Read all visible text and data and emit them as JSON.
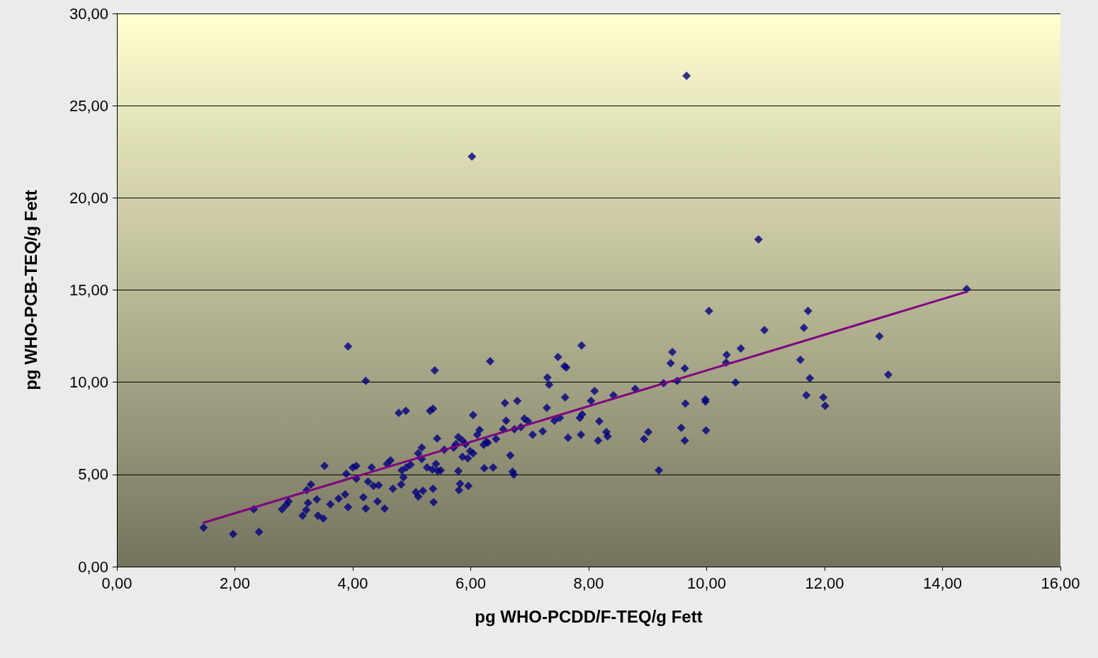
{
  "chart_data": {
    "type": "scatter",
    "xlabel": "pg WHO-PCDD/F-TEQ/g Fett",
    "ylabel": "pg WHO-PCB-TEQ/g Fett",
    "xlim": [
      0,
      16
    ],
    "ylim": [
      0,
      30
    ],
    "xticks": [
      {
        "value": 0,
        "label": "0,00"
      },
      {
        "value": 2,
        "label": "2,00"
      },
      {
        "value": 4,
        "label": "4,00"
      },
      {
        "value": 6,
        "label": "6,00"
      },
      {
        "value": 8,
        "label": "8,00"
      },
      {
        "value": 10,
        "label": "10,00"
      },
      {
        "value": 12,
        "label": "12,00"
      },
      {
        "value": 14,
        "label": "14,00"
      },
      {
        "value": 16,
        "label": "16,00"
      }
    ],
    "yticks": [
      {
        "value": 0,
        "label": "0,00"
      },
      {
        "value": 5,
        "label": "5,00"
      },
      {
        "value": 10,
        "label": "10,00"
      },
      {
        "value": 15,
        "label": "15,00"
      },
      {
        "value": 20,
        "label": "20,00"
      },
      {
        "value": 25,
        "label": "25,00"
      },
      {
        "value": 30,
        "label": "30,00"
      }
    ],
    "grid": "y",
    "series": [
      {
        "color": "#000080",
        "marker": "diamond",
        "x": [
          1.47,
          1.97,
          2.41,
          2.32,
          2.8,
          2.87,
          2.91,
          3.15,
          3.21,
          3.22,
          3.24,
          3.29,
          3.39,
          3.41,
          3.5,
          3.52,
          3.62,
          3.76,
          3.87,
          3.89,
          3.92,
          3.92,
          4.0,
          4.06,
          4.06,
          4.18,
          4.22,
          4.22,
          4.26,
          4.32,
          4.35,
          4.44,
          4.42,
          4.54,
          4.58,
          4.64,
          4.68,
          4.78,
          4.82,
          4.83,
          4.86,
          4.9,
          4.91,
          4.98,
          5.07,
          5.11,
          5.11,
          5.17,
          5.19,
          5.17,
          5.26,
          5.31,
          5.35,
          5.36,
          5.36,
          5.37,
          5.39,
          5.41,
          5.43,
          5.44,
          5.49,
          5.55,
          5.71,
          5.75,
          5.79,
          5.79,
          5.8,
          5.82,
          5.86,
          5.86,
          5.91,
          5.96,
          5.95,
          5.99,
          6.02,
          6.04,
          6.04,
          6.11,
          6.15,
          6.22,
          6.23,
          6.26,
          6.29,
          6.33,
          6.38,
          6.43,
          6.55,
          6.58,
          6.6,
          6.67,
          6.71,
          6.73,
          6.74,
          6.79,
          6.85,
          6.91,
          6.97,
          7.05,
          7.22,
          7.29,
          7.3,
          7.33,
          7.42,
          7.48,
          7.51,
          7.59,
          7.62,
          7.6,
          7.65,
          7.85,
          7.87,
          7.89,
          7.88,
          8.04,
          8.1,
          8.16,
          8.18,
          8.3,
          8.32,
          8.42,
          8.79,
          8.94,
          9.01,
          9.19,
          9.27,
          9.39,
          9.42,
          9.5,
          9.57,
          9.63,
          9.64,
          9.63,
          9.66,
          9.98,
          9.98,
          9.99,
          10.04,
          10.33,
          10.34,
          10.49,
          10.58,
          10.88,
          10.98,
          11.59,
          11.65,
          11.69,
          11.72,
          11.75,
          11.98,
          12.01,
          12.93,
          13.08,
          14.41
        ],
        "values": [
          2.11,
          1.77,
          1.88,
          3.11,
          3.11,
          3.34,
          3.53,
          2.77,
          3.07,
          4.15,
          3.46,
          4.46,
          3.65,
          2.77,
          2.61,
          5.46,
          3.38,
          3.69,
          3.92,
          5.03,
          3.23,
          11.95,
          5.38,
          5.46,
          4.76,
          3.76,
          10.07,
          3.15,
          4.61,
          5.38,
          4.38,
          4.42,
          3.53,
          3.15,
          5.57,
          5.76,
          4.23,
          8.34,
          4.46,
          5.22,
          4.84,
          8.45,
          5.38,
          5.53,
          4.03,
          3.8,
          6.15,
          6.45,
          4.11,
          5.84,
          5.38,
          8.45,
          5.26,
          8.57,
          4.23,
          3.5,
          10.64,
          5.57,
          6.95,
          5.19,
          5.22,
          6.34,
          6.45,
          6.65,
          7.03,
          5.19,
          4.15,
          4.49,
          6.84,
          5.95,
          6.65,
          4.38,
          5.88,
          6.26,
          22.24,
          6.15,
          8.22,
          7.15,
          7.41,
          6.61,
          5.34,
          6.76,
          6.72,
          11.14,
          5.38,
          6.92,
          7.45,
          8.87,
          7.91,
          6.03,
          5.15,
          4.99,
          7.45,
          8.99,
          7.57,
          8.03,
          7.88,
          7.15,
          7.34,
          8.61,
          10.26,
          9.87,
          7.91,
          11.37,
          8.07,
          10.87,
          10.8,
          9.18,
          6.99,
          8.07,
          7.15,
          8.26,
          11.99,
          8.99,
          9.53,
          6.84,
          7.88,
          7.3,
          7.07,
          9.3,
          9.64,
          6.92,
          7.3,
          5.22,
          9.95,
          11.03,
          11.64,
          10.07,
          7.53,
          10.76,
          8.84,
          6.84,
          26.62,
          9.07,
          8.95,
          7.38,
          13.87,
          11.06,
          11.49,
          9.99,
          11.83,
          17.75,
          12.83,
          11.22,
          12.95,
          9.3,
          13.87,
          10.22,
          9.18,
          8.72,
          12.49,
          10.41,
          15.06
        ]
      },
      {
        "type": "line",
        "color": "#800080",
        "marker": "none",
        "line_style": "solid",
        "x": [
          1.47,
          14.41
        ],
        "values": [
          2.38,
          14.91
        ]
      }
    ]
  }
}
